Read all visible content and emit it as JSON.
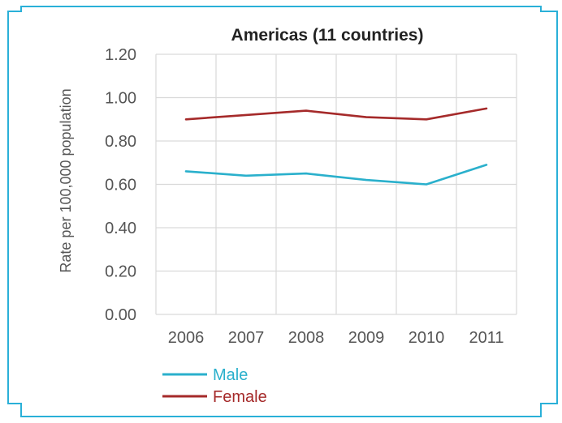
{
  "chart_data": {
    "type": "line",
    "title": "Americas (11 countries)",
    "ylabel": "Rate per 100,000 population",
    "xlabel": "",
    "categories": [
      "2006",
      "2007",
      "2008",
      "2009",
      "2010",
      "2011"
    ],
    "y_ticks": [
      "0.00",
      "0.20",
      "0.40",
      "0.60",
      "0.80",
      "1.00",
      "1.20"
    ],
    "ylim": [
      0,
      1.2
    ],
    "grid": true,
    "legend_position": "bottom-left",
    "series": [
      {
        "name": "Male",
        "color": "#2ab0cc",
        "values": [
          0.66,
          0.64,
          0.65,
          0.62,
          0.6,
          0.69
        ]
      },
      {
        "name": "Female",
        "color": "#a52a2a",
        "values": [
          0.9,
          0.92,
          0.94,
          0.91,
          0.9,
          0.95
        ]
      }
    ]
  },
  "colors": {
    "frame": "#2ab0d8",
    "grid": "#d9d9d9"
  }
}
